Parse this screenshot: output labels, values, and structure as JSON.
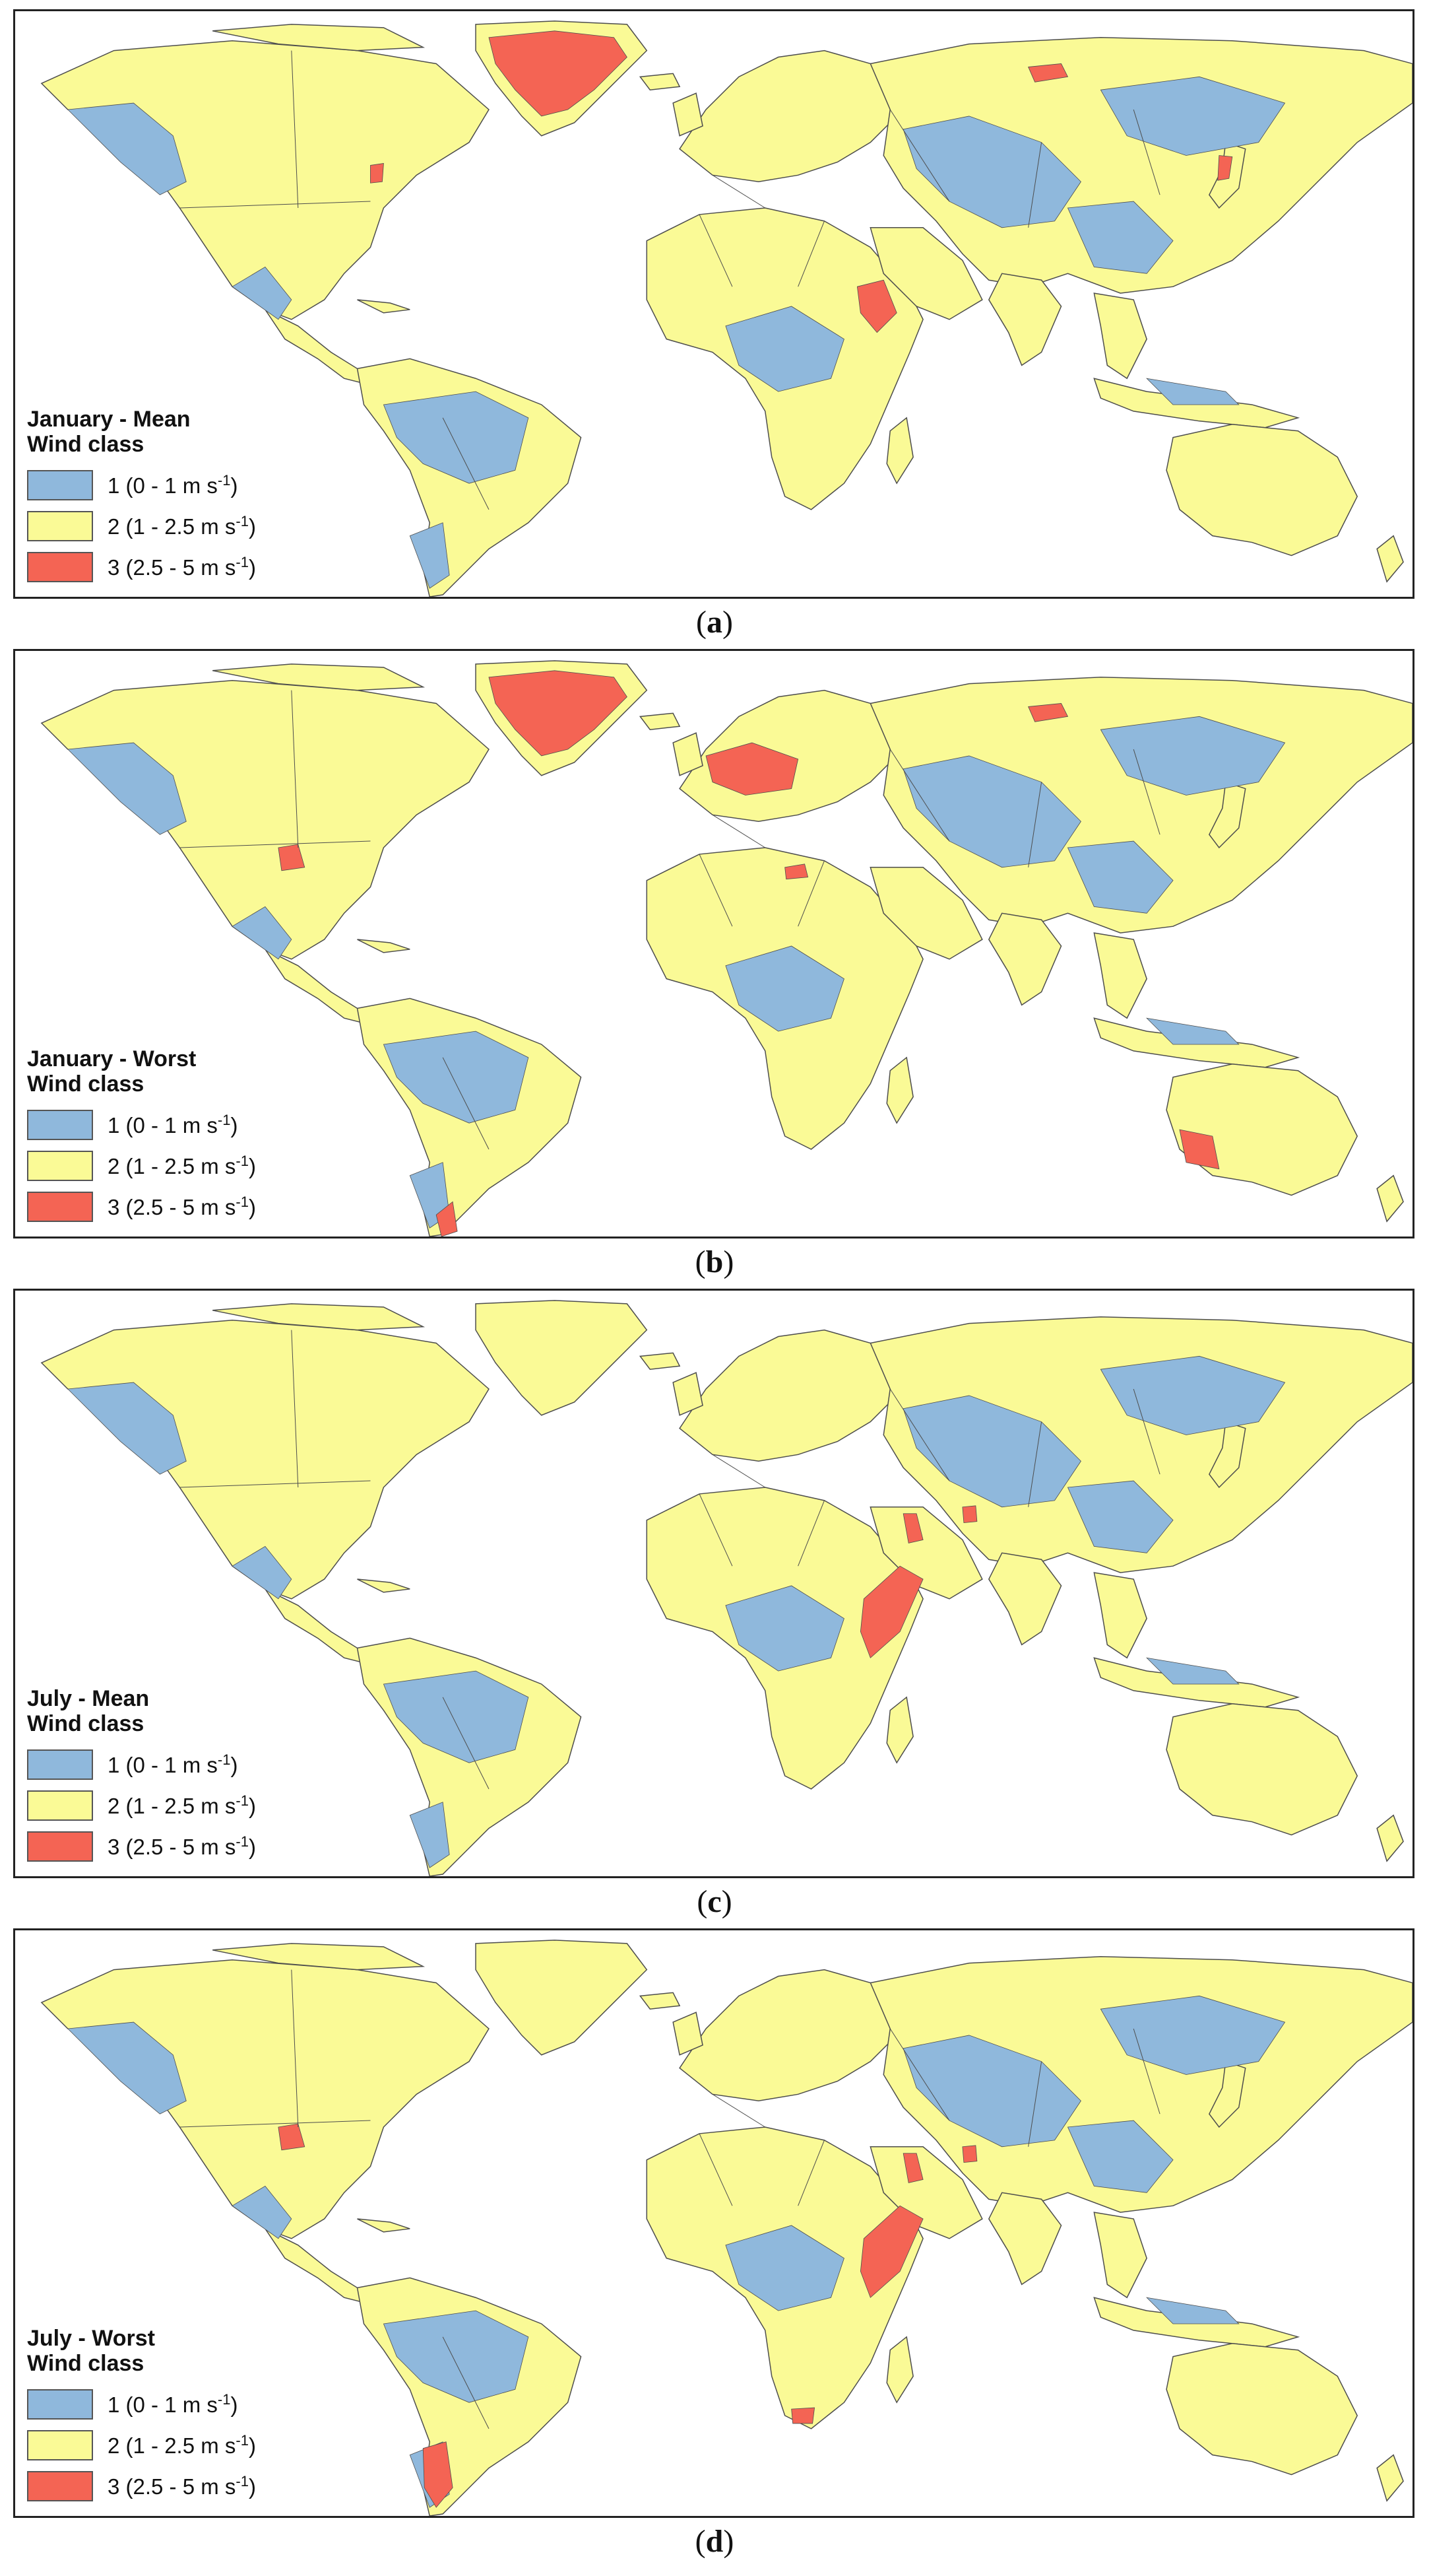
{
  "colors": {
    "class1": "#8fb8dc",
    "class2": "#fafa96",
    "class3": "#f46454",
    "border": "#4d4d4d"
  },
  "legend_items": [
    {
      "prefix": "1 (0 - 1 m s",
      "sup": "-1",
      "suffix": ")"
    },
    {
      "prefix": "2 (1 - 2.5 m s",
      "sup": "-1",
      "suffix": ")"
    },
    {
      "prefix": "3 (2.5 - 5 m s",
      "sup": "-1",
      "suffix": ")"
    }
  ],
  "panels": [
    {
      "title_line1": "January - Mean",
      "title_line2": "Wind class",
      "caption_letter": "a",
      "highlights": [
        "greenland",
        "ethiopia-east",
        "russia-north",
        "us-east",
        "japan"
      ]
    },
    {
      "title_line1": "January - Worst",
      "title_line2": "Wind class",
      "caption_letter": "b",
      "highlights": [
        "greenland",
        "northern-europe",
        "russia-north",
        "us-central",
        "australia-south",
        "argentina-south",
        "north-africa"
      ]
    },
    {
      "title_line1": "July - Mean",
      "title_line2": "Wind class",
      "caption_letter": "c",
      "highlights": [
        "somalia",
        "arabia-coast",
        "pakistan"
      ]
    },
    {
      "title_line1": "July - Worst",
      "title_line2": "Wind class",
      "caption_letter": "d",
      "highlights": [
        "somalia",
        "arabia-coast",
        "patagonia",
        "south-africa",
        "us-central",
        "pakistan"
      ]
    }
  ]
}
